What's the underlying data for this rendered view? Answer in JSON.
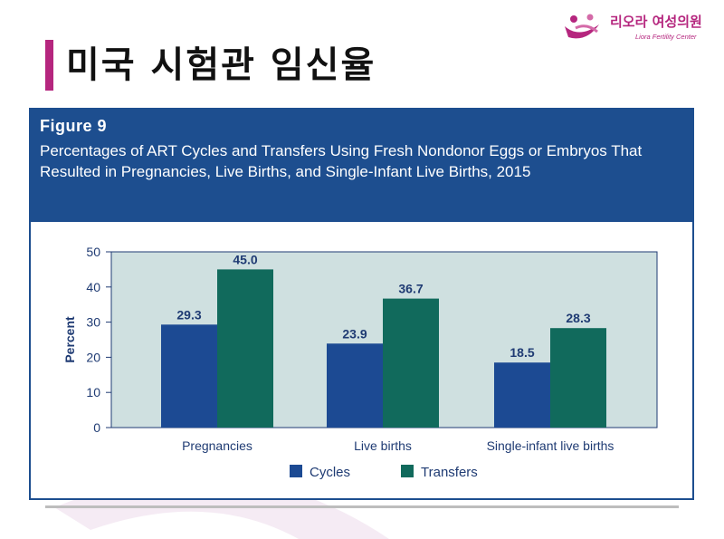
{
  "slide": {
    "title": "미국 시험관 임신율"
  },
  "logo": {
    "name": "리오라 여성의원",
    "subtitle": "Liora Fertility Center"
  },
  "figure": {
    "label": "Figure 9",
    "caption": "Percentages of ART Cycles and Transfers Using Fresh Nondonor Eggs or Embryos That Resulted in Pregnancies, Live Births, and Single-Infant Live Births, 2015"
  },
  "colors": {
    "accent": "#b5267e",
    "header": "#1d4e8f",
    "plot_bg": "#cfe0e0",
    "cycles": "#1c4a93",
    "transfers": "#116a5c"
  },
  "chart_data": {
    "type": "bar",
    "categories": [
      "Pregnancies",
      "Live births",
      "Single-infant live births"
    ],
    "series": [
      {
        "name": "Cycles",
        "values": [
          29.3,
          23.9,
          18.5
        ]
      },
      {
        "name": "Transfers",
        "values": [
          45.0,
          36.7,
          28.3
        ]
      }
    ],
    "value_labels": [
      [
        "29.3",
        "23.9",
        "18.5"
      ],
      [
        "45.0",
        "36.7",
        "28.3"
      ]
    ],
    "xlabel": "",
    "ylabel": "Percent",
    "ylim": [
      0,
      50
    ],
    "yticks": [
      "0",
      "10",
      "20",
      "30",
      "40",
      "50"
    ],
    "grid": false,
    "legend": "bottom"
  }
}
